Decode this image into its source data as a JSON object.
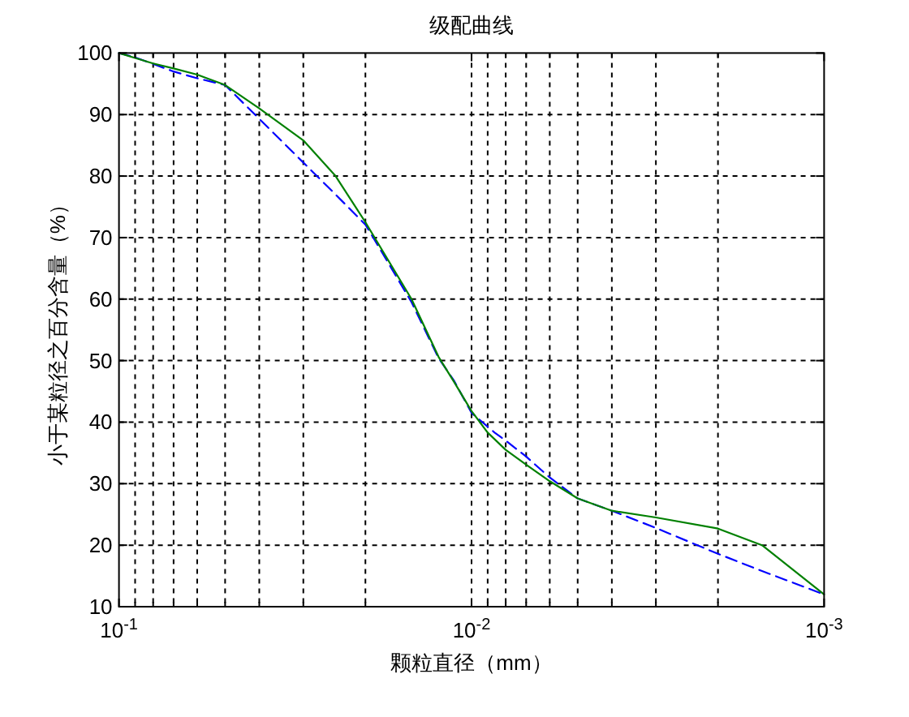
{
  "chart_data": {
    "type": "line",
    "title": "级配曲线",
    "xlabel": "颗粒直径（mm）",
    "ylabel": "小于某粒径之百分含量（%）",
    "log": "x",
    "xlim": [
      0.1,
      0.001
    ],
    "xticks": [
      {
        "value": 0.1,
        "label": "10$^{-1}$"
      },
      {
        "value": 0.09,
        "label": null
      },
      {
        "value": 0.08,
        "label": null
      },
      {
        "value": 0.07,
        "label": null
      },
      {
        "value": 0.06,
        "label": null
      },
      {
        "value": 0.05,
        "label": null
      },
      {
        "value": 0.04,
        "label": null
      },
      {
        "value": 0.03,
        "label": null
      },
      {
        "value": 0.02,
        "label": null
      },
      {
        "value": 0.01,
        "label": "10$^{-2}$"
      },
      {
        "value": 0.009,
        "label": null
      },
      {
        "value": 0.008,
        "label": null
      },
      {
        "value": 0.007,
        "label": null
      },
      {
        "value": 0.006,
        "label": null
      },
      {
        "value": 0.005,
        "label": null
      },
      {
        "value": 0.004,
        "label": null
      },
      {
        "value": 0.003,
        "label": null
      },
      {
        "value": 0.002,
        "label": null
      },
      {
        "value": 0.001,
        "label": "10$^{-3}$"
      }
    ],
    "ylim": [
      10,
      100
    ],
    "yticks": [
      10,
      20,
      30,
      40,
      50,
      60,
      70,
      80,
      90,
      100
    ],
    "grid": true,
    "series": [
      {
        "color": "#0000ff",
        "line_style": "dashed",
        "x": [
          0.1,
          0.09,
          0.07,
          0.06,
          0.05,
          0.04,
          0.03,
          0.0243,
          0.02,
          0.019,
          0.0148,
          0.0124,
          0.0112,
          0.01,
          0.0086,
          0.008,
          0.007,
          0.006,
          0.005,
          0.004,
          0.003,
          0.002,
          0.0015,
          0.001
        ],
        "values": [
          100,
          99.3,
          97,
          95.9,
          94.8,
          89.3,
          82.2,
          77,
          72.1,
          70,
          59.5,
          50.4,
          46.7,
          41.5,
          38.3,
          37,
          34.4,
          31,
          27.6,
          25.6,
          22.8,
          18.6,
          15.8,
          12
        ]
      },
      {
        "color": "#008000",
        "line_style": "solid",
        "x": [
          0.1,
          0.09,
          0.08,
          0.07,
          0.06,
          0.05,
          0.04,
          0.03,
          0.0243,
          0.02,
          0.0148,
          0.0124,
          0.0112,
          0.01,
          0.009,
          0.008,
          0.007,
          0.006,
          0.005,
          0.004,
          0.003,
          0.002,
          0.0015,
          0.001
        ],
        "values": [
          100,
          99.2,
          98.3,
          97.5,
          96.5,
          94.8,
          91,
          85.8,
          80,
          72.5,
          60,
          50.6,
          46.5,
          41.8,
          38.3,
          35.5,
          33.1,
          30.4,
          27.6,
          25.6,
          24.5,
          22.7,
          20,
          12
        ]
      }
    ]
  }
}
